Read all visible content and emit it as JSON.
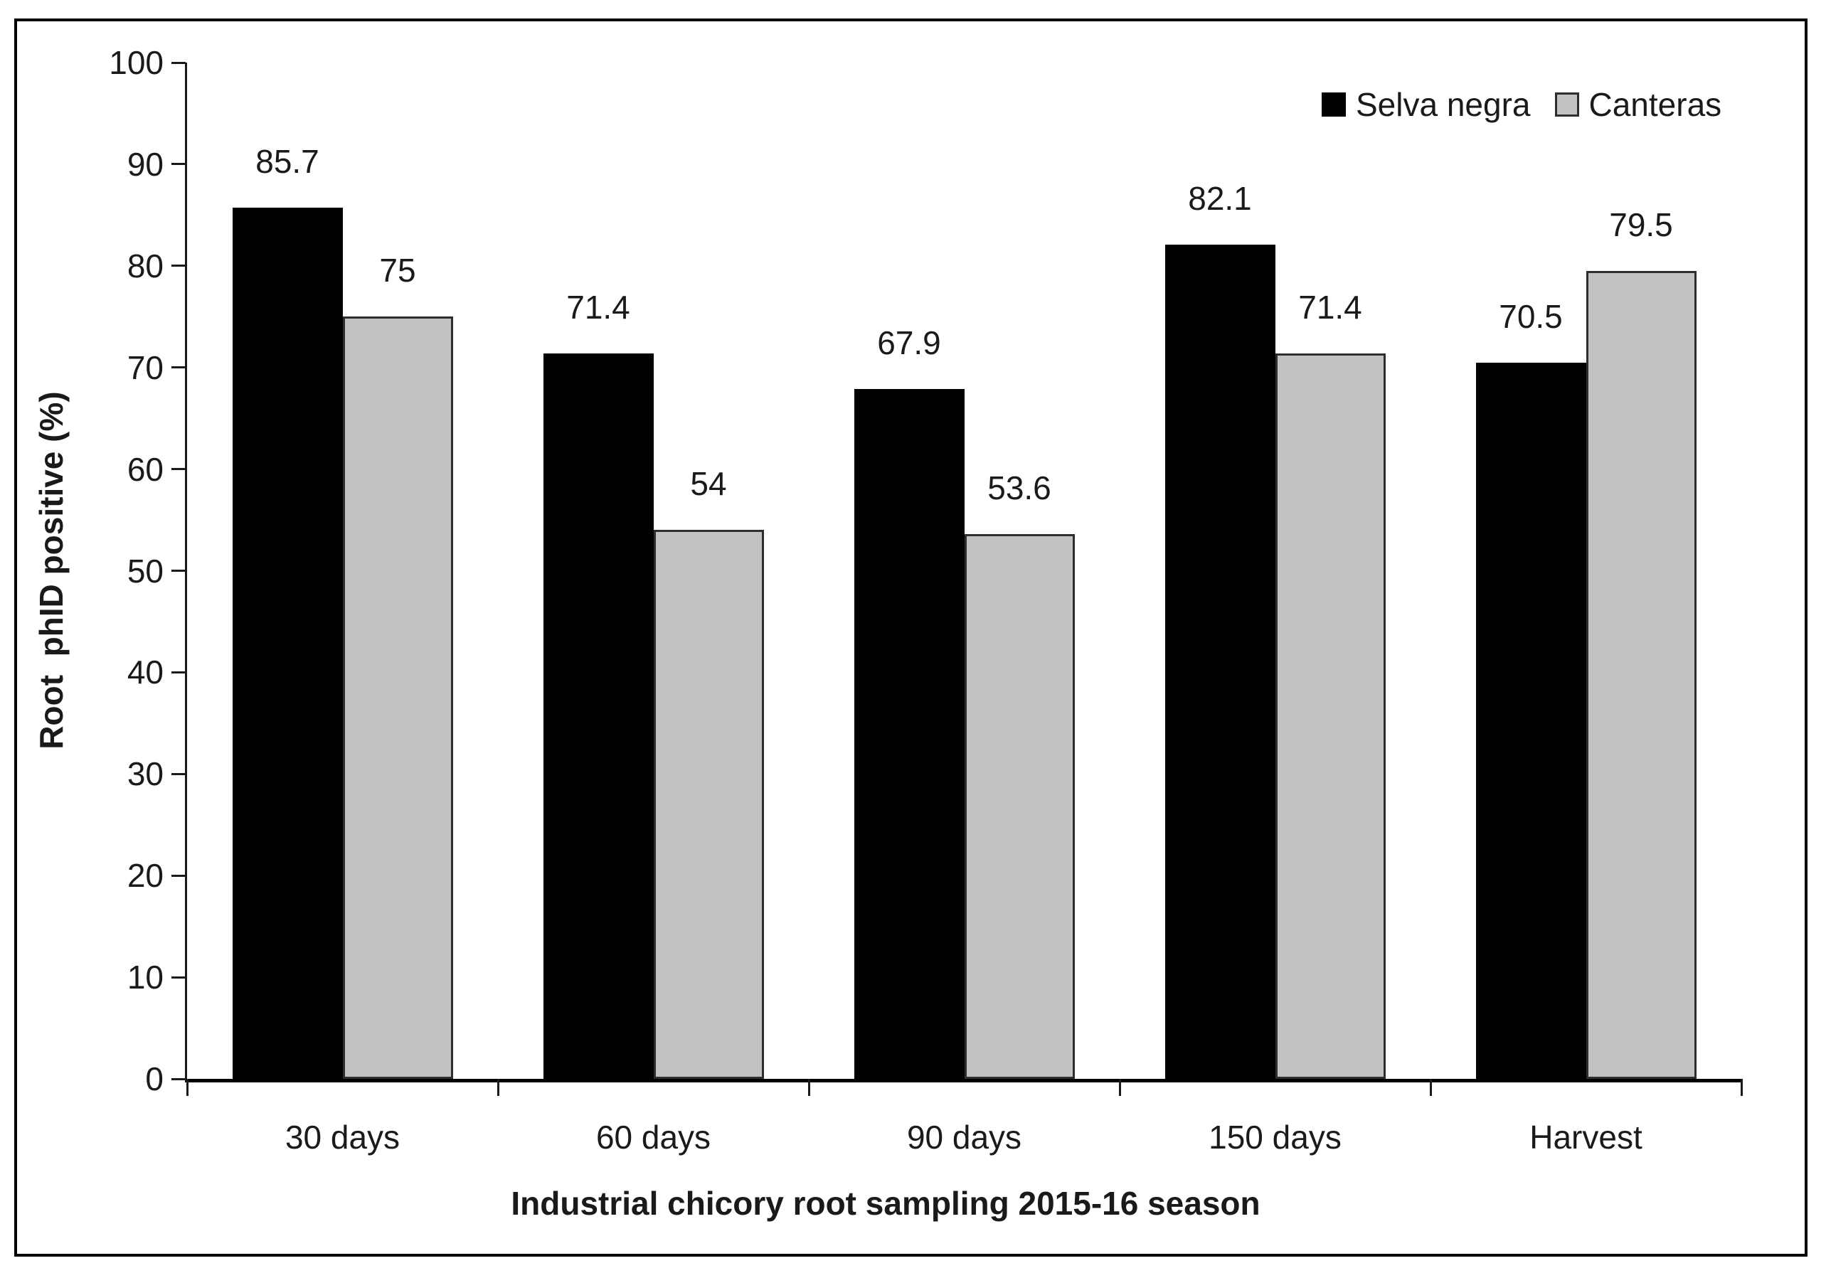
{
  "chart_data": {
    "type": "bar",
    "title": "",
    "categories": [
      "30 days",
      "60 days",
      "90 days",
      "150 days",
      "Harvest"
    ],
    "series": [
      {
        "name": "Selva negra",
        "color": "#000000",
        "border_color": "#000000",
        "values": [
          85.7,
          71.4,
          67.9,
          82.1,
          70.5
        ],
        "labels": [
          "85.7",
          "71.4",
          "67.9",
          "82.1",
          "70.5"
        ]
      },
      {
        "name": "Canteras",
        "color": "#c2c2c2",
        "border_color": "#2e2e2e",
        "values": [
          75,
          54,
          53.6,
          71.4,
          79.5
        ],
        "labels": [
          "75",
          "54",
          "53.6",
          "71.4",
          "79.5"
        ]
      }
    ],
    "xlabel": "Industrial chicory root sampling 2015-16 season",
    "ylabel": "Root  phID positive (%)",
    "ylim": [
      0,
      100
    ],
    "yticks": [
      0,
      10,
      20,
      30,
      40,
      50,
      60,
      70,
      80,
      90,
      100
    ],
    "grid": false,
    "legend_position": "top-right",
    "axis_color": "#1a1a1a",
    "text_color": "#1a1a1a",
    "frame_color": "#000000",
    "background_color": "#ffffff"
  }
}
